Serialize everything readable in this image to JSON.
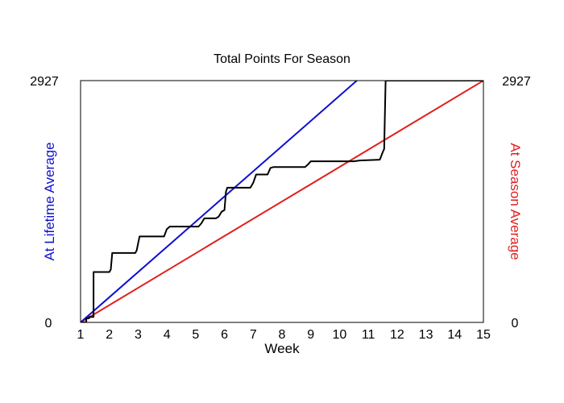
{
  "chart_data": {
    "type": "line",
    "title": "Total Points For Season",
    "xlabel": "Week",
    "ylabel_left": "At Lifetime Average",
    "ylabel_right": "At Season Average",
    "xlim": [
      1,
      15
    ],
    "ylim": [
      0,
      2927
    ],
    "x_ticks": [
      "1",
      "2",
      "3",
      "4",
      "5",
      "6",
      "7",
      "8",
      "9",
      "10",
      "11",
      "12",
      "13",
      "14",
      "15"
    ],
    "y_left_ticks": [
      "0",
      "2927"
    ],
    "y_right_ticks": [
      "0",
      "2927"
    ],
    "grid": false,
    "colors": {
      "cumulative": "#000000",
      "lifetime": "#1010d0",
      "season": "#e02020",
      "frame": "#000000"
    },
    "series": [
      {
        "key": "cumulative",
        "step": true,
        "points": [
          [
            1.0,
            0
          ],
          [
            1.2,
            0
          ],
          [
            1.2,
            50
          ],
          [
            1.3,
            50
          ],
          [
            1.3,
            65
          ],
          [
            1.45,
            65
          ],
          [
            1.45,
            610
          ],
          [
            2.0,
            610
          ],
          [
            2.05,
            640
          ],
          [
            2.1,
            840
          ],
          [
            2.9,
            840
          ],
          [
            2.95,
            870
          ],
          [
            3.05,
            1040
          ],
          [
            3.9,
            1040
          ],
          [
            4.0,
            1130
          ],
          [
            4.1,
            1160
          ],
          [
            5.1,
            1160
          ],
          [
            5.2,
            1200
          ],
          [
            5.3,
            1260
          ],
          [
            5.7,
            1260
          ],
          [
            5.8,
            1280
          ],
          [
            5.9,
            1340
          ],
          [
            6.0,
            1360
          ],
          [
            6.05,
            1580
          ],
          [
            6.1,
            1630
          ],
          [
            6.9,
            1630
          ],
          [
            7.0,
            1690
          ],
          [
            7.1,
            1790
          ],
          [
            7.5,
            1790
          ],
          [
            7.6,
            1870
          ],
          [
            7.7,
            1880
          ],
          [
            8.8,
            1880
          ],
          [
            8.9,
            1910
          ],
          [
            9.0,
            1950
          ],
          [
            10.5,
            1950
          ],
          [
            10.7,
            1960
          ],
          [
            11.4,
            1970
          ],
          [
            11.5,
            2060
          ],
          [
            11.55,
            2100
          ],
          [
            11.6,
            2927
          ],
          [
            15.0,
            2927
          ]
        ]
      },
      {
        "key": "lifetime",
        "points": [
          [
            1.0,
            0
          ],
          [
            10.6,
            2927
          ]
        ]
      },
      {
        "key": "season",
        "points": [
          [
            1.0,
            0
          ],
          [
            15.0,
            2927
          ]
        ]
      }
    ]
  }
}
